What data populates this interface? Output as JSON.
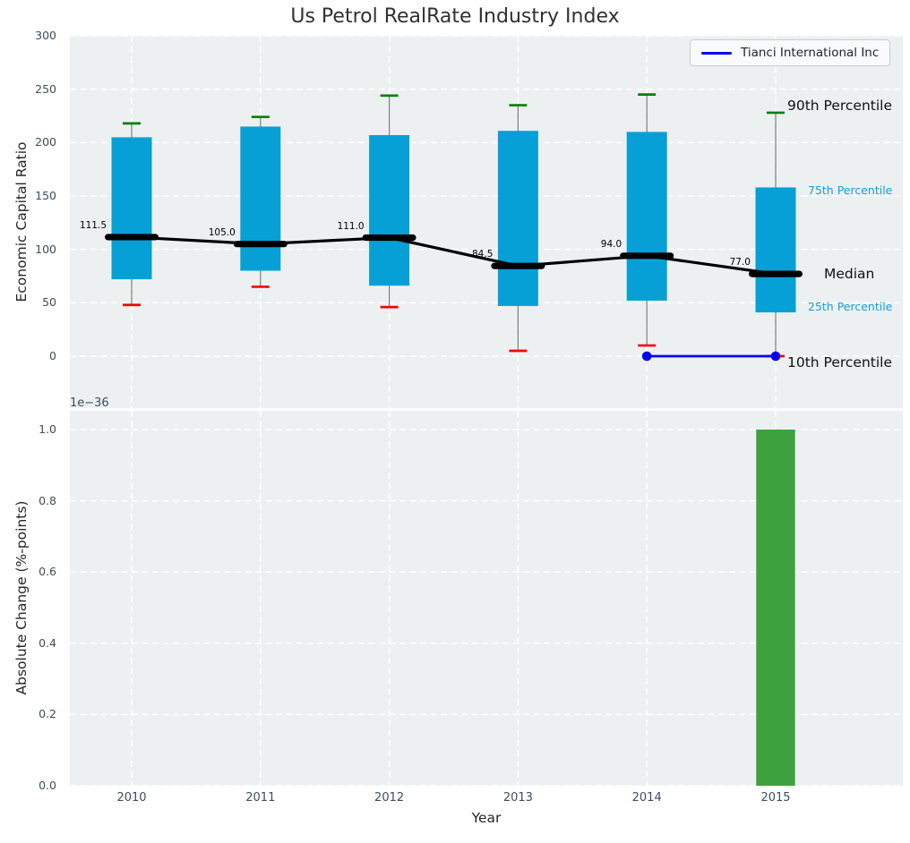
{
  "figure": {
    "title": "Us Petrol RealRate Industry Index",
    "colors": {
      "plot_bg": "#edf0f1",
      "grid": "#ffffff",
      "box_fill": "#07a0d6",
      "p90_cap": "#008000",
      "p10_cap": "#f80000",
      "median": "#000000",
      "whisker": "#7d7d7d",
      "company_line": "#0000ee",
      "bar_fill": "#3da23d",
      "tick_label": "#3d4d60",
      "axis_label": "#262626",
      "percentile_blue": "#14a0da",
      "percentile_black": "#111111"
    }
  },
  "legend": {
    "label": "Tianci International Inc"
  },
  "chart_data": [
    {
      "type": "boxplot",
      "title": "Us Petrol RealRate Industry Index",
      "ylabel": "Economic Capital Ratio",
      "ylim": [
        -50,
        300
      ],
      "grid": true,
      "legend_position": "upper right",
      "y_tick_values": [
        0,
        50,
        100,
        150,
        200,
        250,
        300
      ],
      "y_tick_labels": [
        "0",
        "50",
        "100",
        "150",
        "200",
        "250",
        "300"
      ],
      "categories": [
        "2010",
        "2011",
        "2012",
        "2013",
        "2014",
        "2015"
      ],
      "boxes": [
        {
          "year": "2010",
          "p10": 48,
          "p25": 72,
          "median": 111.5,
          "p75": 205,
          "p90": 218,
          "median_label": "111.5"
        },
        {
          "year": "2011",
          "p10": 65,
          "p25": 80,
          "median": 105.0,
          "p75": 215,
          "p90": 224,
          "median_label": "105.0"
        },
        {
          "year": "2012",
          "p10": 46,
          "p25": 66,
          "median": 111.0,
          "p75": 207,
          "p90": 244,
          "median_label": "111.0"
        },
        {
          "year": "2013",
          "p10": 5,
          "p25": 47,
          "median": 84.5,
          "p75": 211,
          "p90": 235,
          "median_label": "84.5"
        },
        {
          "year": "2014",
          "p10": 10,
          "p25": 52,
          "median": 94.0,
          "p75": 210,
          "p90": 245,
          "median_label": "94.0"
        },
        {
          "year": "2015",
          "p10": 0,
          "p25": 41,
          "median": 77.0,
          "p75": 158,
          "p90": 228,
          "median_label": "77.0"
        }
      ],
      "company_line": {
        "name": "Tianci International Inc",
        "years": [
          "2014",
          "2015"
        ],
        "values": [
          0,
          0
        ]
      },
      "percentile_labels": [
        {
          "text": "90th Percentile",
          "style": "major"
        },
        {
          "text": "75th Percentile",
          "style": "minor"
        },
        {
          "text": "Median",
          "style": "major"
        },
        {
          "text": "25th Percentile",
          "style": "minor"
        },
        {
          "text": "10th Percentile",
          "style": "major"
        }
      ]
    },
    {
      "type": "bar",
      "ylabel": "Absolute Change (%-points)",
      "xlabel": "Year",
      "offset_text": "1e−36",
      "unit_scale": "1e-36",
      "grid": true,
      "y_tick_values": [
        0,
        0.2,
        0.4,
        0.6,
        0.8,
        1.0
      ],
      "y_tick_labels": [
        "0.0",
        "0.2",
        "0.4",
        "0.6",
        "0.8",
        "1.0"
      ],
      "categories": [
        "2010",
        "2011",
        "2012",
        "2013",
        "2014",
        "2015"
      ],
      "values": [
        0,
        0,
        0,
        0,
        0,
        1.0
      ]
    }
  ]
}
